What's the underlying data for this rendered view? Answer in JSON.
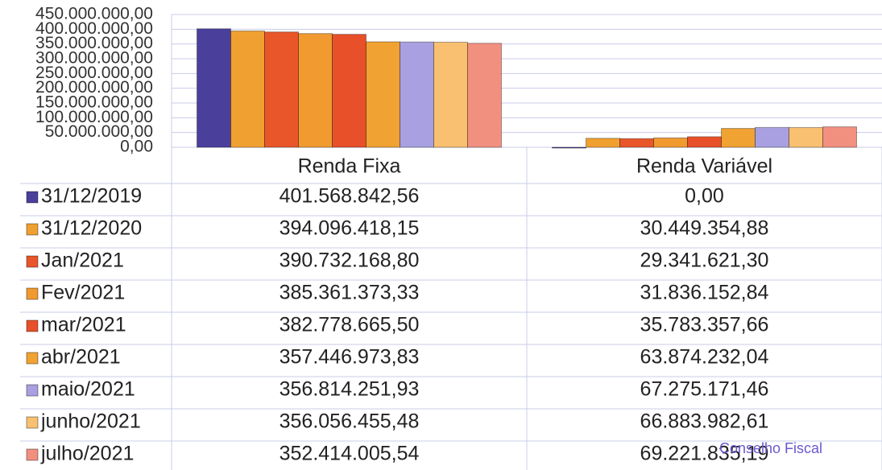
{
  "chart_data": {
    "type": "bar",
    "categories": [
      "Renda Fixa",
      "Renda Variável"
    ],
    "series": [
      {
        "name": "31/12/2019",
        "color": "#4b3f9c",
        "values": [
          401568842.56,
          0
        ],
        "value_labels": [
          "401.568.842,56",
          "0,00"
        ]
      },
      {
        "name": "31/12/2020",
        "color": "#f0a030",
        "values": [
          394096418.15,
          30449354.88
        ],
        "value_labels": [
          "394.096.418,15",
          "30.449.354,88"
        ]
      },
      {
        "name": "Jan/2021",
        "color": "#e8562a",
        "values": [
          390732168.8,
          29341621.3
        ],
        "value_labels": [
          "390.732.168,80",
          "29.341.621,30"
        ]
      },
      {
        "name": "Fev/2021",
        "color": "#f09a30",
        "values": [
          385361373.33,
          31836152.84
        ],
        "value_labels": [
          "385.361.373,33",
          "31.836.152,84"
        ]
      },
      {
        "name": "mar/2021",
        "color": "#e8502a",
        "values": [
          382778665.5,
          35783357.66
        ],
        "value_labels": [
          "382.778.665,50",
          "35.783.357,66"
        ]
      },
      {
        "name": "abr/2021",
        "color": "#f0a232",
        "values": [
          357446973.83,
          63874232.04
        ],
        "value_labels": [
          "357.446.973,83",
          "63.874.232,04"
        ]
      },
      {
        "name": "maio/2021",
        "color": "#a8a0e0",
        "values": [
          356814251.93,
          67275171.46
        ],
        "value_labels": [
          "356.814.251,93",
          "67.275.171,46"
        ]
      },
      {
        "name": "junho/2021",
        "color": "#f8c070",
        "values": [
          356056455.48,
          66883982.61
        ],
        "value_labels": [
          "356.056.455,48",
          "66.883.982,61"
        ]
      },
      {
        "name": "julho/2021",
        "color": "#f29080",
        "values": [
          352414005.54,
          69221835.19
        ],
        "value_labels": [
          "352.414.005,54",
          "69.221.835,19"
        ]
      }
    ],
    "ylim": [
      0,
      450000000
    ],
    "yticks": [
      {
        "value": 0,
        "label": "0,00"
      },
      {
        "value": 50000000,
        "label": "50.000.000,00"
      },
      {
        "value": 100000000,
        "label": "100.000.000,00"
      },
      {
        "value": 150000000,
        "label": "150.000.000,00"
      },
      {
        "value": 200000000,
        "label": "200.000.000,00"
      },
      {
        "value": 250000000,
        "label": "250.000.000,00"
      },
      {
        "value": 300000000,
        "label": "300.000.000,00"
      },
      {
        "value": 350000000,
        "label": "350.000.000,00"
      },
      {
        "value": 400000000,
        "label": "400.000.000,00"
      },
      {
        "value": 450000000,
        "label": "450.000.000,00"
      }
    ],
    "grid": true,
    "annotations": [
      "Conselho Fiscal"
    ]
  }
}
